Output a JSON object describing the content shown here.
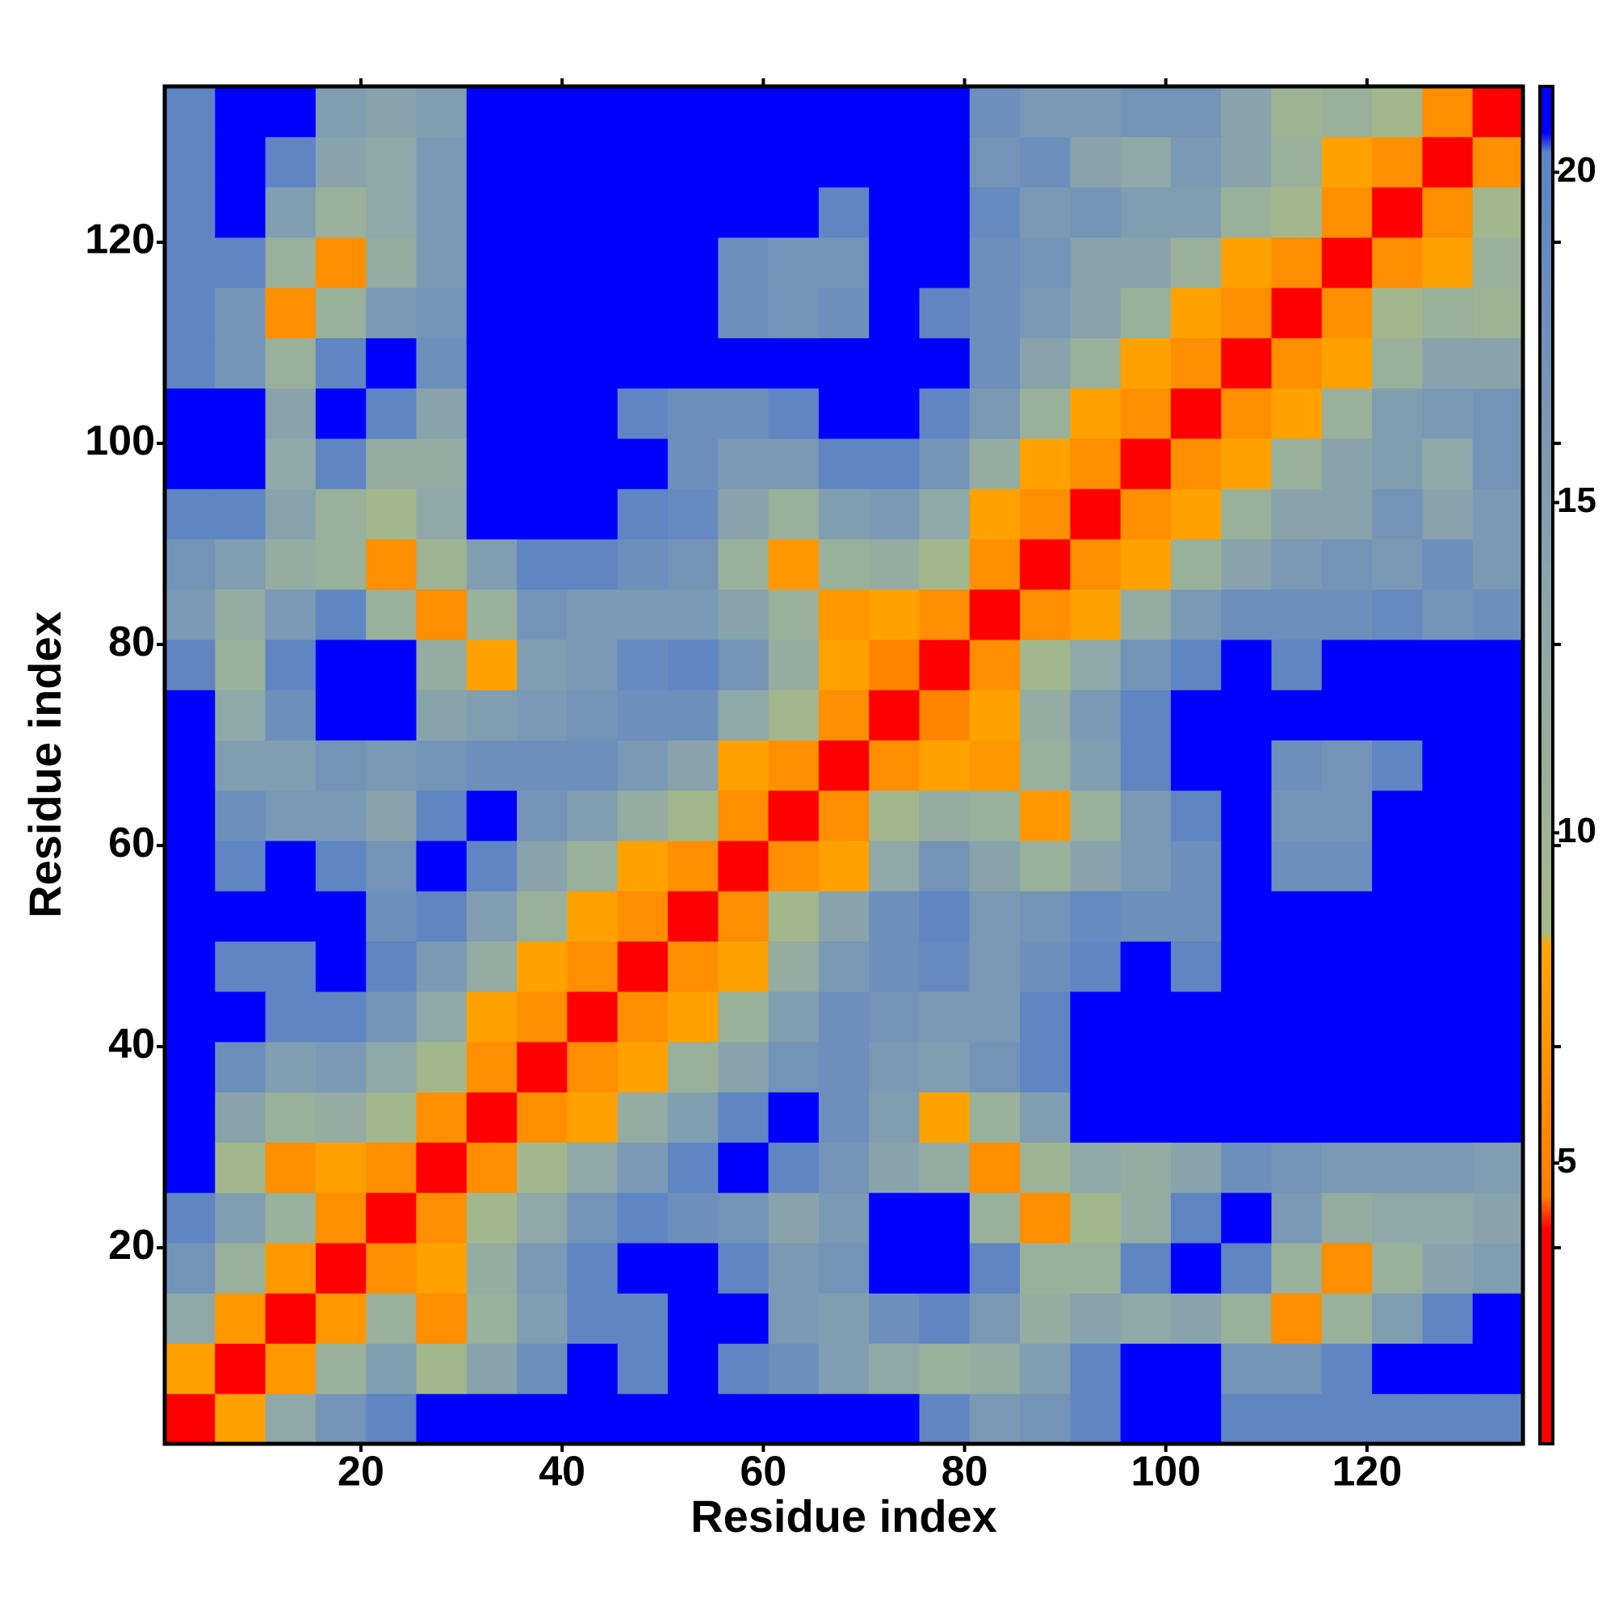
{
  "chart_data": {
    "type": "heatmap",
    "xlabel": "Residue index",
    "ylabel": "Residue index",
    "x": [
      3,
      8,
      13,
      18,
      23,
      28,
      33,
      38,
      43,
      48,
      53,
      58,
      63,
      68,
      73,
      78,
      83,
      88,
      93,
      98,
      103,
      108,
      113,
      118,
      123,
      128,
      133
    ],
    "y": [
      3,
      8,
      13,
      18,
      23,
      28,
      33,
      38,
      43,
      48,
      53,
      58,
      63,
      68,
      73,
      78,
      83,
      88,
      93,
      98,
      103,
      108,
      113,
      118,
      123,
      128,
      133
    ],
    "xlim": [
      0.5,
      135.5
    ],
    "ylim": [
      0.5,
      135.5
    ],
    "xticks": [
      20,
      40,
      60,
      80,
      100,
      120
    ],
    "yticks": [
      20,
      40,
      60,
      80,
      100,
      120
    ],
    "z": [
      [
        3,
        8,
        13,
        17,
        20,
        22,
        22,
        22,
        22,
        22,
        22,
        22,
        22,
        22,
        22,
        20,
        16,
        17,
        20,
        22,
        22,
        20,
        20,
        20,
        20,
        20,
        20
      ],
      [
        8,
        3,
        7,
        11,
        15,
        9,
        14,
        18,
        22,
        20,
        22,
        20,
        18,
        15,
        13,
        11,
        12,
        15,
        20,
        22,
        22,
        17,
        17,
        20,
        22,
        22,
        22
      ],
      [
        13,
        7,
        3,
        7,
        11,
        6,
        11,
        15,
        20,
        20,
        22,
        22,
        16,
        15,
        18,
        20,
        16,
        12,
        14,
        13,
        14,
        11,
        6,
        11,
        15,
        20,
        22
      ],
      [
        17,
        11,
        7,
        3,
        6,
        8,
        12,
        16,
        20,
        22,
        22,
        20,
        16,
        17,
        22,
        22,
        20,
        11,
        11,
        20,
        22,
        20,
        11,
        6,
        11,
        14,
        15
      ],
      [
        20,
        15,
        11,
        6,
        3,
        6,
        9,
        13,
        17,
        20,
        18,
        17,
        14,
        16,
        21,
        21,
        11,
        6,
        9,
        12,
        20,
        21,
        16,
        12,
        13,
        13,
        14
      ],
      [
        22,
        9,
        6,
        8,
        6,
        3,
        6,
        9,
        13,
        16,
        20,
        22,
        20,
        17,
        14,
        12,
        6,
        10,
        13,
        12,
        14,
        18,
        17,
        16,
        16,
        16,
        15
      ],
      [
        22,
        14,
        11,
        12,
        9,
        6,
        3,
        6,
        8,
        12,
        15,
        20,
        22,
        18,
        15,
        8,
        11,
        15,
        22,
        22,
        22,
        22,
        22,
        22,
        22,
        22,
        22
      ],
      [
        22,
        18,
        15,
        16,
        13,
        9,
        6,
        3,
        6,
        8,
        11,
        14,
        17,
        18,
        16,
        15,
        17,
        20,
        22,
        22,
        22,
        22,
        22,
        22,
        22,
        22,
        22
      ],
      [
        22,
        22,
        20,
        20,
        17,
        13,
        8,
        6,
        3,
        6,
        8,
        11,
        15,
        18,
        17,
        16,
        16,
        20,
        22,
        22,
        22,
        22,
        22,
        22,
        22,
        22,
        22
      ],
      [
        22,
        20,
        20,
        22,
        20,
        16,
        12,
        8,
        6,
        3,
        6,
        8,
        12,
        16,
        18,
        19,
        16,
        18,
        20,
        22,
        20,
        22,
        22,
        22,
        22,
        22,
        22
      ],
      [
        22,
        22,
        22,
        22,
        18,
        20,
        15,
        11,
        8,
        6,
        3,
        6,
        9,
        14,
        18,
        20,
        16,
        17,
        19,
        18,
        18,
        22,
        22,
        22,
        22,
        22,
        22
      ],
      [
        22,
        20,
        22,
        20,
        17,
        22,
        20,
        14,
        11,
        8,
        6,
        3,
        6,
        8,
        13,
        17,
        14,
        11,
        14,
        16,
        18,
        22,
        18,
        18,
        22,
        22,
        22
      ],
      [
        22,
        18,
        16,
        16,
        14,
        20,
        22,
        17,
        15,
        12,
        9,
        6,
        3,
        6,
        9,
        12,
        11,
        7,
        11,
        16,
        20,
        22,
        17,
        17,
        22,
        22,
        22
      ],
      [
        22,
        15,
        15,
        17,
        16,
        17,
        18,
        18,
        18,
        16,
        14,
        8,
        6,
        3,
        6,
        8,
        7,
        11,
        15,
        20,
        22,
        22,
        18,
        17,
        20,
        22,
        22
      ],
      [
        22,
        13,
        18,
        22,
        21,
        14,
        15,
        16,
        17,
        18,
        18,
        13,
        9,
        6,
        3,
        5,
        8,
        12,
        16,
        20,
        22,
        22,
        22,
        22,
        22,
        22,
        22
      ],
      [
        20,
        11,
        20,
        22,
        21,
        12,
        8,
        15,
        16,
        19,
        20,
        17,
        12,
        8,
        5,
        3,
        6,
        9,
        13,
        17,
        20,
        22,
        20,
        22,
        22,
        22,
        22
      ],
      [
        16,
        12,
        16,
        20,
        11,
        6,
        11,
        17,
        16,
        16,
        16,
        14,
        11,
        7,
        8,
        6,
        3,
        6,
        8,
        12,
        16,
        18,
        18,
        18,
        19,
        17,
        18
      ],
      [
        17,
        15,
        12,
        11,
        6,
        10,
        15,
        20,
        20,
        18,
        17,
        11,
        7,
        11,
        12,
        9,
        6,
        3,
        6,
        8,
        11,
        14,
        16,
        17,
        16,
        18,
        16
      ],
      [
        20,
        20,
        14,
        11,
        9,
        13,
        22,
        22,
        22,
        20,
        19,
        14,
        11,
        15,
        16,
        13,
        8,
        6,
        3,
        6,
        8,
        11,
        14,
        14,
        17,
        14,
        16
      ],
      [
        22,
        22,
        13,
        20,
        12,
        12,
        22,
        22,
        22,
        22,
        18,
        16,
        16,
        20,
        20,
        17,
        12,
        8,
        6,
        3,
        6,
        8,
        11,
        14,
        15,
        13,
        17
      ],
      [
        22,
        22,
        14,
        22,
        20,
        14,
        22,
        22,
        22,
        20,
        18,
        18,
        20,
        22,
        22,
        20,
        16,
        11,
        8,
        6,
        3,
        6,
        8,
        11,
        15,
        16,
        17
      ],
      [
        20,
        17,
        11,
        20,
        21,
        18,
        22,
        22,
        22,
        22,
        22,
        22,
        22,
        22,
        22,
        22,
        18,
        14,
        11,
        8,
        6,
        3,
        6,
        8,
        11,
        14,
        14
      ],
      [
        20,
        17,
        6,
        11,
        16,
        17,
        22,
        22,
        22,
        22,
        22,
        18,
        17,
        18,
        22,
        20,
        18,
        16,
        14,
        11,
        8,
        6,
        3,
        6,
        9,
        11,
        10
      ],
      [
        20,
        20,
        11,
        6,
        12,
        16,
        22,
        22,
        22,
        22,
        22,
        18,
        17,
        17,
        22,
        22,
        18,
        17,
        14,
        14,
        11,
        8,
        6,
        3,
        6,
        8,
        11
      ],
      [
        20,
        22,
        15,
        11,
        13,
        16,
        22,
        22,
        22,
        22,
        22,
        22,
        22,
        20,
        22,
        22,
        19,
        16,
        17,
        15,
        15,
        11,
        9,
        6,
        3,
        6,
        9
      ],
      [
        20,
        22,
        20,
        14,
        13,
        16,
        22,
        22,
        22,
        22,
        22,
        22,
        22,
        22,
        22,
        22,
        17,
        18,
        14,
        13,
        16,
        14,
        11,
        8,
        6,
        3,
        6
      ],
      [
        20,
        22,
        22,
        15,
        14,
        15,
        22,
        22,
        22,
        22,
        22,
        22,
        22,
        22,
        22,
        22,
        18,
        16,
        16,
        17,
        17,
        14,
        10,
        11,
        9,
        6,
        3
      ]
    ],
    "colorbar": {
      "lim": [
        0.75,
        21.3
      ],
      "ticks": [
        5,
        10,
        15,
        20
      ],
      "colorscale": [
        [
          0.75,
          "#ff0000"
        ],
        [
          4,
          "#ff0000"
        ],
        [
          4.5,
          "#ff7f00"
        ],
        [
          8.3,
          "#ffa500"
        ],
        [
          8.5,
          "#a6b98a"
        ],
        [
          13,
          "#8fa8a8"
        ],
        [
          20.3,
          "#5d83c4"
        ],
        [
          20.6,
          "#0000ff"
        ],
        [
          21.3,
          "#0000ff"
        ]
      ]
    }
  }
}
